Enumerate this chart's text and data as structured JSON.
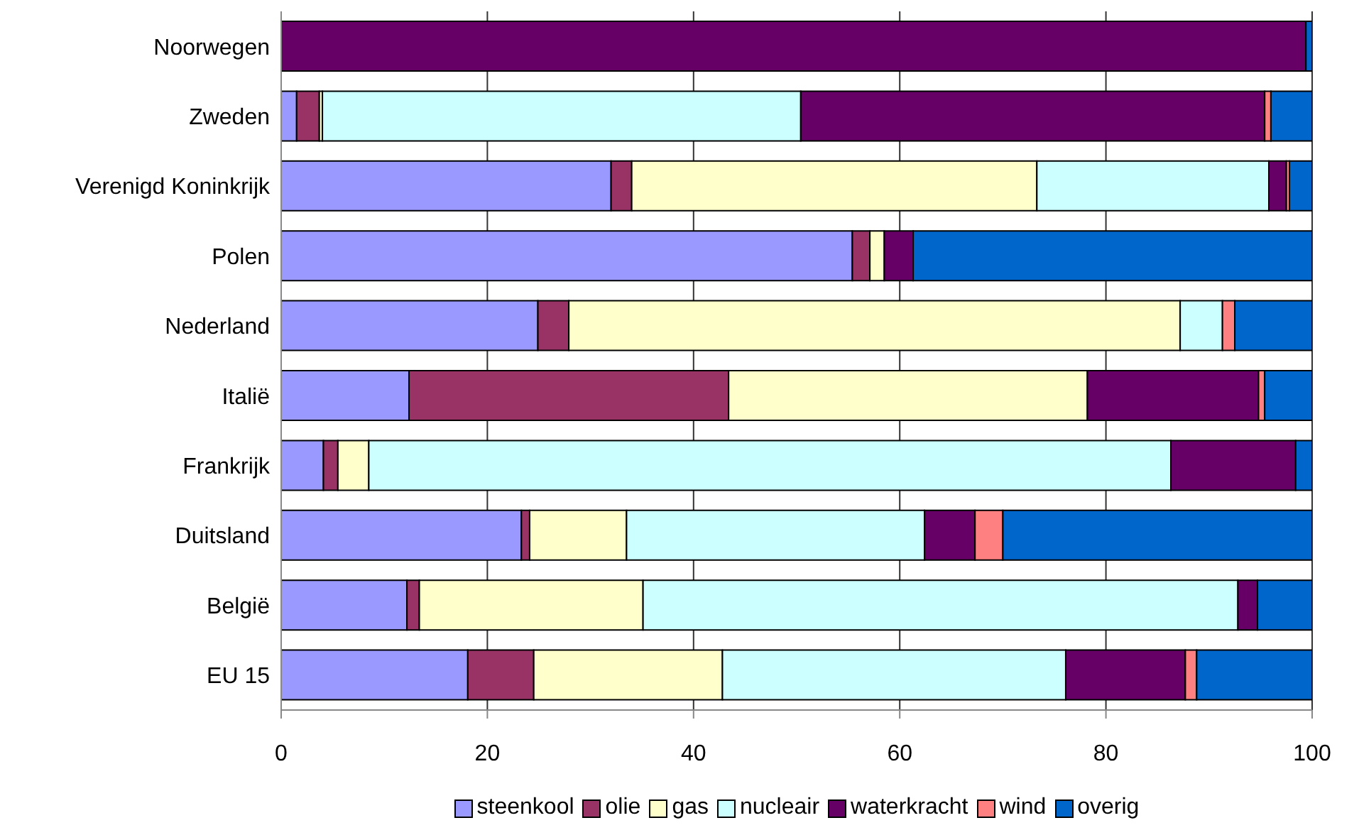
{
  "chart_data": {
    "type": "bar",
    "orientation": "horizontal",
    "stacked": true,
    "categories": [
      "Noorwegen",
      "Zweden",
      "Verenigd Koninkrijk",
      "Polen",
      "Nederland",
      "Italië",
      "Frankrijk",
      "Duitsland",
      "België",
      "EU 15"
    ],
    "series": [
      {
        "name": "steenkool",
        "color": "#9999ff",
        "values": [
          0,
          1.5,
          32.0,
          55.4,
          24.9,
          12.4,
          4.1,
          23.3,
          12.2,
          18.1
        ]
      },
      {
        "name": "olie",
        "color": "#993366",
        "values": [
          0,
          2.2,
          2.0,
          1.7,
          3.0,
          31.0,
          1.4,
          0.8,
          1.2,
          6.4
        ]
      },
      {
        "name": "gas",
        "color": "#ffffcc",
        "values": [
          0,
          0.3,
          39.3,
          1.4,
          59.3,
          34.8,
          3.0,
          9.4,
          21.7,
          18.3
        ]
      },
      {
        "name": "nucleair",
        "color": "#ccffff",
        "values": [
          0,
          46.4,
          22.5,
          0,
          4.1,
          0,
          77.8,
          28.9,
          57.7,
          33.3
        ]
      },
      {
        "name": "waterkracht",
        "color": "#660066",
        "values": [
          99.4,
          45.0,
          1.7,
          2.8,
          0,
          16.6,
          12.1,
          4.9,
          1.9,
          11.6
        ]
      },
      {
        "name": "wind",
        "color": "#ff8080",
        "values": [
          0,
          0.6,
          0.3,
          0,
          1.2,
          0.6,
          0,
          2.7,
          0,
          1.1
        ]
      },
      {
        "name": "overig",
        "color": "#0066cc",
        "values": [
          0.6,
          4.0,
          2.3,
          38.7,
          7.5,
          4.6,
          1.6,
          30.0,
          5.3,
          11.2
        ]
      }
    ],
    "xlim": [
      0,
      100
    ],
    "xticks": [
      0,
      20,
      40,
      60,
      80,
      100
    ],
    "grid": "x",
    "legend": "bottom"
  }
}
